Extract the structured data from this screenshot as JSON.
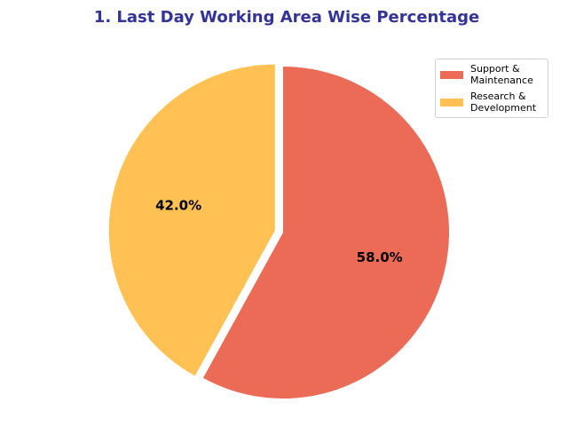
{
  "chart_data": {
    "type": "pie",
    "title": "1. Last Day Working Area Wise Percentage",
    "categories": [
      "Support & Maintenance",
      "Research & Development"
    ],
    "values": [
      58.0,
      42.0
    ],
    "labels": [
      "58.0%",
      "42.0%"
    ],
    "legend_labels": [
      "Support &\nMaintenance",
      "Research &\nDevelopment"
    ],
    "colors": [
      "#ec6b56",
      "#ffc154"
    ],
    "exploded": [
      "Research & Development"
    ],
    "start_angle": 90,
    "direction": "clockwise",
    "legend_position": "top-right",
    "title_color": "#333399"
  }
}
